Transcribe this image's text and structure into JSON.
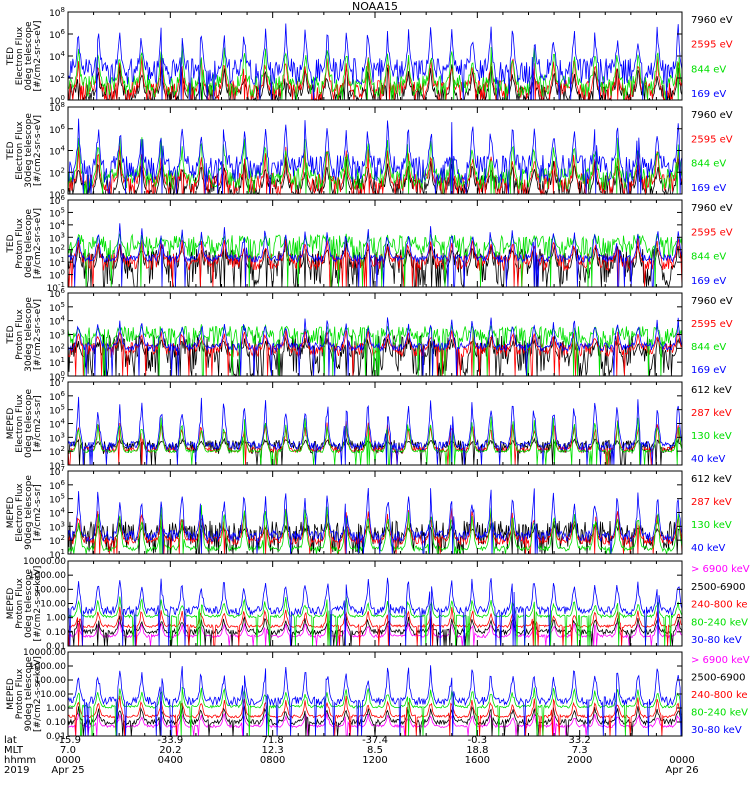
{
  "title": "NOAA15",
  "chart_data": [
    {
      "type": "line",
      "ylabel": [
        "TED",
        "Electron Flux",
        "0deg telescope",
        "[#/cm2-sr-s-eV]"
      ],
      "ytick_labels": [
        "10^0",
        "10^2",
        "10^4",
        "10^6",
        "10^8"
      ],
      "log_range": [
        0,
        8
      ],
      "series": [
        {
          "name": "7960 eV",
          "color": "#000000",
          "base": 0.3,
          "spread": 1.2,
          "peak": 3.5
        },
        {
          "name": "2595 eV",
          "color": "#ff0000",
          "base": 0.8,
          "spread": 1.0,
          "peak": 4.5
        },
        {
          "name": "844 eV",
          "color": "#00e000",
          "base": 1.3,
          "spread": 1.0,
          "peak": 5.5
        },
        {
          "name": "169 eV",
          "color": "#0000ff",
          "base": 2.6,
          "spread": 1.2,
          "peak": 7.2
        }
      ]
    },
    {
      "type": "line",
      "ylabel": [
        "TED",
        "Electron Flux",
        "30deg telescope",
        "[#/cm2-sr-s-eV]"
      ],
      "ytick_labels": [
        "10^0",
        "10^2",
        "10^4",
        "10^6",
        "10^8"
      ],
      "log_range": [
        0,
        8
      ],
      "series": [
        {
          "name": "7960 eV",
          "color": "#000000",
          "base": 0.4,
          "spread": 1.3,
          "peak": 3.5
        },
        {
          "name": "2595 eV",
          "color": "#ff0000",
          "base": 0.9,
          "spread": 1.0,
          "peak": 4.5
        },
        {
          "name": "844 eV",
          "color": "#00e000",
          "base": 1.4,
          "spread": 1.0,
          "peak": 5.8
        },
        {
          "name": "169 eV",
          "color": "#0000ff",
          "base": 2.3,
          "spread": 1.3,
          "peak": 7.3
        }
      ]
    },
    {
      "type": "line",
      "ylabel": [
        "TED",
        "Proton Flux",
        "0deg telescope",
        "[#/cm2-sr-s-eV]"
      ],
      "ytick_labels": [
        "10^-1",
        "10^0",
        "10^1",
        "10^2",
        "10^3",
        "10^4",
        "10^5",
        "10^6"
      ],
      "log_range": [
        -1,
        6
      ],
      "series": [
        {
          "name": "7960 eV",
          "color": "#000000",
          "base": 0.5,
          "spread": 1.6,
          "peak": 3.0
        },
        {
          "name": "2595 eV",
          "color": "#ff0000",
          "base": 1.0,
          "spread": 0.7,
          "peak": 3.2
        },
        {
          "name": "844 eV",
          "color": "#00e000",
          "base": 2.2,
          "spread": 1.0,
          "peak": 3.4
        },
        {
          "name": "169 eV",
          "color": "#0000ff",
          "base": 1.3,
          "spread": 0.3,
          "peak": 4.2
        }
      ]
    },
    {
      "type": "line",
      "ylabel": [
        "TED",
        "Proton Flux",
        "30deg telescope",
        "[#/cm2-sr-s-eV]"
      ],
      "ytick_labels": [
        "10^0",
        "10^1",
        "10^2",
        "10^3",
        "10^4",
        "10^5",
        "10^6"
      ],
      "log_range": [
        0,
        6
      ],
      "series": [
        {
          "name": "7960 eV",
          "color": "#000000",
          "base": 1.4,
          "spread": 1.6,
          "peak": 3.0
        },
        {
          "name": "2595 eV",
          "color": "#ff0000",
          "base": 1.9,
          "spread": 0.5,
          "peak": 3.5
        },
        {
          "name": "844 eV",
          "color": "#00e000",
          "base": 2.8,
          "spread": 0.8,
          "peak": 3.8
        },
        {
          "name": "169 eV",
          "color": "#0000ff",
          "base": 2.1,
          "spread": 0.3,
          "peak": 4.5
        }
      ]
    },
    {
      "type": "line",
      "ylabel": [
        "MEPED",
        "Electron Flux",
        "0deg telescope",
        "[#/cm2-s-sr]"
      ],
      "ytick_labels": [
        "10^1",
        "10^2",
        "10^3",
        "10^4",
        "10^5",
        "10^6",
        "10^7"
      ],
      "log_range": [
        1,
        7
      ],
      "series": [
        {
          "name": "612 keV",
          "color": "#000000",
          "base": 2.3,
          "spread": 0.5,
          "peak": 3.0
        },
        {
          "name": "287 keV",
          "color": "#ff0000",
          "base": 2.1,
          "spread": 0.2,
          "peak": 4.5
        },
        {
          "name": "130 keV",
          "color": "#00e000",
          "base": 2.0,
          "spread": 0.1,
          "peak": 4.8
        },
        {
          "name": "40 keV",
          "color": "#0000ff",
          "base": 2.4,
          "spread": 0.3,
          "peak": 6.4
        }
      ]
    },
    {
      "type": "line",
      "ylabel": [
        "MEPED",
        "Electron Flux",
        "90deg telescope",
        "[#/cm2-s-sr]"
      ],
      "ytick_labels": [
        "10^1",
        "10^2",
        "10^3",
        "10^4",
        "10^5",
        "10^6",
        "10^7"
      ],
      "log_range": [
        1,
        7
      ],
      "series": [
        {
          "name": "612 keV",
          "color": "#000000",
          "base": 2.2,
          "spread": 1.2,
          "peak": 3.2
        },
        {
          "name": "287 keV",
          "color": "#ff0000",
          "base": 2.0,
          "spread": 0.3,
          "peak": 4.5
        },
        {
          "name": "130 keV",
          "color": "#00e000",
          "base": 1.4,
          "spread": 0.2,
          "peak": 4.8
        },
        {
          "name": "40 keV",
          "color": "#0000ff",
          "base": 2.3,
          "spread": 0.4,
          "peak": 6.2
        }
      ]
    },
    {
      "type": "line",
      "ylabel": [
        "MEPED",
        "Proton Flux",
        "0deg telescope",
        "[#/cm2-s-sr-keV]"
      ],
      "ytick_labels": [
        "0.01",
        "0.10",
        "1.00",
        "10.00",
        "100.00",
        "1000.00",
        "10000.00"
      ],
      "log_range": [
        -2,
        4
      ],
      "series": [
        {
          "name": "> 6900 keV",
          "color": "#ff00ff",
          "base": -1.3,
          "spread": 0.1,
          "peak": -0.2
        },
        {
          "name": "2500-6900",
          "color": "#000000",
          "base": -1.0,
          "spread": 0.2,
          "peak": 0.2
        },
        {
          "name": "240-800 ke",
          "color": "#ff0000",
          "base": -0.6,
          "spread": 0.1,
          "peak": 0.8
        },
        {
          "name": "80-240 keV",
          "color": "#00e000",
          "base": 0.1,
          "spread": 0.1,
          "peak": 1.5
        },
        {
          "name": "30-80 keV",
          "color": "#0000ff",
          "base": 0.5,
          "spread": 0.3,
          "peak": 3.2
        }
      ]
    },
    {
      "type": "line",
      "ylabel": [
        "MEPED",
        "Proton Flux",
        "90deg telescope",
        "[#/cm2-s-sr-keV]"
      ],
      "ytick_labels": [
        "0.01",
        "0.10",
        "1.00",
        "10.00",
        "100.00",
        "1000.00",
        "10000.00"
      ],
      "log_range": [
        -2,
        4
      ],
      "series": [
        {
          "name": "> 6900 keV",
          "color": "#ff00ff",
          "base": -1.3,
          "spread": 0.1,
          "peak": -0.2
        },
        {
          "name": "2500-6900",
          "color": "#000000",
          "base": -1.0,
          "spread": 0.2,
          "peak": 0.3
        },
        {
          "name": "240-800 ke",
          "color": "#ff0000",
          "base": -0.6,
          "spread": 0.1,
          "peak": 0.9
        },
        {
          "name": "80-240 keV",
          "color": "#00e000",
          "base": 0.1,
          "spread": 0.1,
          "peak": 1.6
        },
        {
          "name": "30-80 keV",
          "color": "#0000ff",
          "base": 0.5,
          "spread": 0.3,
          "peak": 3.3
        }
      ]
    }
  ],
  "x_axis": {
    "row_labels": [
      "lat",
      "MLT",
      "hhmm",
      "2019"
    ],
    "ticks": [
      {
        "lat": "-15.9",
        "mlt": "7.0",
        "hhmm": "0000",
        "date": "Apr 25"
      },
      {
        "lat": "-33.9",
        "mlt": "20.2",
        "hhmm": "0400",
        "date": ""
      },
      {
        "lat": "71.8",
        "mlt": "12.3",
        "hhmm": "0800",
        "date": ""
      },
      {
        "lat": "-37.4",
        "mlt": "8.5",
        "hhmm": "1200",
        "date": ""
      },
      {
        "lat": "-0.3",
        "mlt": "18.8",
        "hhmm": "1600",
        "date": ""
      },
      {
        "lat": "33.2",
        "mlt": "7.3",
        "hhmm": "2000",
        "date": ""
      },
      {
        "lat": "",
        "mlt": "",
        "hhmm": "0000",
        "date": "Apr 26"
      }
    ]
  }
}
